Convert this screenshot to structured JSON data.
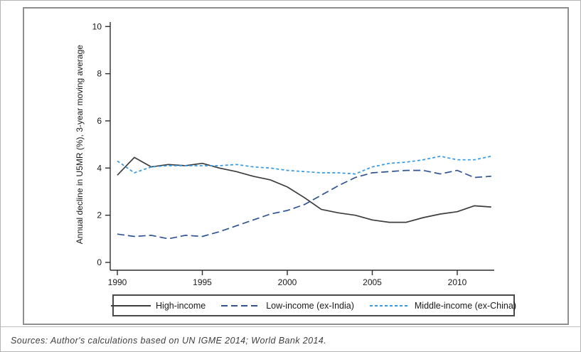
{
  "figure": {
    "sources_note": "Sources: Author's calculations based on UN IGME 2014; World Bank 2014."
  },
  "chart_data": {
    "type": "line",
    "title": "",
    "xlabel": "",
    "ylabel": "Annual decline in U5MR (%), 3-year moving average",
    "x": [
      1990,
      1991,
      1992,
      1993,
      1994,
      1995,
      1996,
      1997,
      1998,
      1999,
      2000,
      2001,
      2002,
      2003,
      2004,
      2005,
      2006,
      2007,
      2008,
      2009,
      2010,
      2011,
      2012
    ],
    "series": [
      {
        "name": "High-income",
        "color": "#3d3d3d",
        "dash": "solid",
        "values": [
          3.7,
          4.45,
          4.05,
          4.15,
          4.1,
          4.2,
          4.0,
          3.85,
          3.65,
          3.5,
          3.2,
          2.75,
          2.25,
          2.1,
          2.0,
          1.8,
          1.7,
          1.7,
          1.9,
          2.05,
          2.15,
          2.4,
          2.35
        ]
      },
      {
        "name": "Low-income (ex-India)",
        "color": "#2f5496",
        "dash": "long-dash",
        "values": [
          1.2,
          1.1,
          1.15,
          1.0,
          1.15,
          1.1,
          1.3,
          1.55,
          1.8,
          2.05,
          2.2,
          2.45,
          2.85,
          3.25,
          3.6,
          3.8,
          3.85,
          3.9,
          3.9,
          3.75,
          3.9,
          3.6,
          3.65
        ]
      },
      {
        "name": "Middle-income (ex-China)",
        "color": "#3399e6",
        "dash": "short-dash",
        "values": [
          4.3,
          3.8,
          4.05,
          4.1,
          4.1,
          4.1,
          4.1,
          4.15,
          4.05,
          4.0,
          3.9,
          3.85,
          3.8,
          3.8,
          3.75,
          4.05,
          4.2,
          4.25,
          4.35,
          4.5,
          4.35,
          4.35,
          4.5
        ]
      }
    ],
    "xticks": [
      1990,
      1995,
      2000,
      2005,
      2010
    ],
    "yticks": [
      0,
      2,
      4,
      6,
      8,
      10
    ],
    "xlim": [
      1990,
      2012
    ],
    "ylim": [
      0,
      10
    ],
    "grid": false,
    "legend_position": "bottom"
  }
}
